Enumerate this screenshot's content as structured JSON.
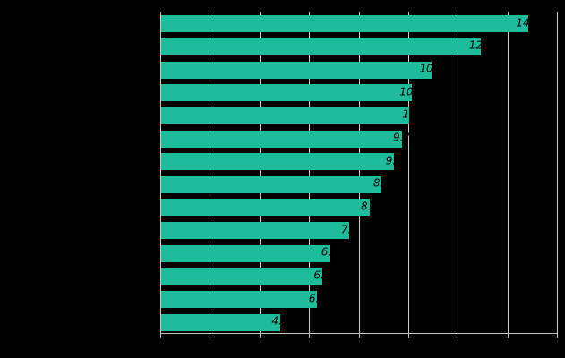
{
  "chart_data": {
    "type": "bar",
    "orientation": "horizontal",
    "title": "",
    "xlabel": "",
    "ylabel": "",
    "values": [
      14.8,
      12.9,
      10.9,
      10.1,
      10,
      9.7,
      9.4,
      8.9,
      8.4,
      7.6,
      6.8,
      6.5,
      6.3,
      4.8
    ],
    "bar_labels": [
      "14.8",
      "12.9",
      "10.9",
      "10.1",
      "10",
      "9.7",
      "9.4",
      "8.9",
      "8.4",
      "7.6",
      "6.8",
      "6.5",
      "6.3",
      "4.8"
    ],
    "xlim": [
      0,
      16
    ],
    "xticks": [
      0,
      2,
      4,
      6,
      8,
      10,
      12,
      14,
      16
    ],
    "grid": true,
    "legend": false,
    "colors": {
      "bar": "#1fbc9c",
      "grid": "#cccccc",
      "axis": "#c4c4c4",
      "bar_label": "#000000",
      "background": "#000000"
    }
  }
}
